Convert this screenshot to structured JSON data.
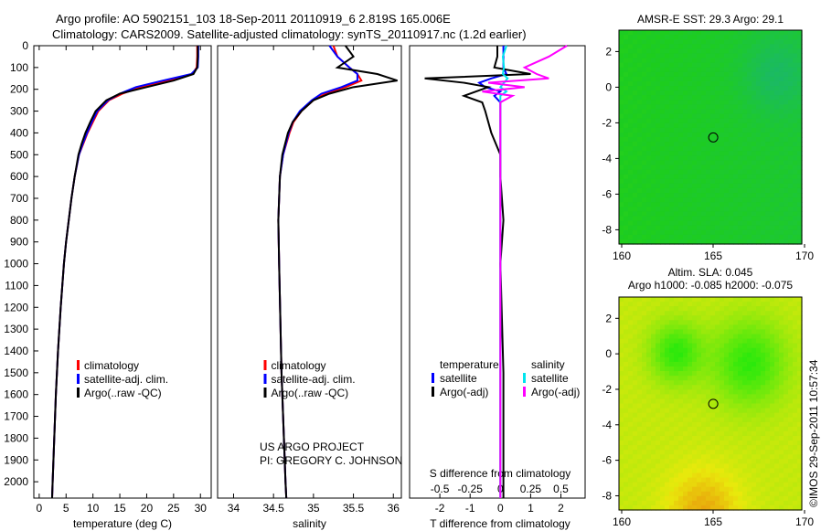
{
  "title": {
    "line1": "Argo profile: AO 5902151_103 18-Sep-2011 20110919_6 2.819S 165.006E",
    "line2": "Climatology: CARS2009. Satellite-adjusted climatology: synTS_20110917.nc (1.2d earlier)"
  },
  "credit": {
    "project": "US ARGO PROJECT",
    "pi": "PI: GREGORY C. JOHNSON",
    "stamp": "©IMOS 29-Sep-2011 10:57:34"
  },
  "colors": {
    "climatology": "#ff0000",
    "satellite": "#0000ff",
    "argo": "#000000",
    "sal_satellite": "#00e5ee",
    "sal_argo": "#ff00ff"
  },
  "chart_data": [
    {
      "type": "line",
      "name": "temperature-profile",
      "xlabel": "temperature (deg C)",
      "ylabel": "",
      "xlim": [
        -1,
        32
      ],
      "ylim": [
        2075,
        0
      ],
      "xticks": [
        0,
        5,
        10,
        15,
        20,
        25,
        30
      ],
      "yticks": [
        0,
        100,
        200,
        300,
        400,
        500,
        600,
        700,
        800,
        900,
        1000,
        1100,
        1200,
        1300,
        1400,
        1500,
        1600,
        1700,
        1800,
        1900,
        2000
      ],
      "depth": [
        0,
        50,
        100,
        130,
        160,
        190,
        220,
        250,
        300,
        350,
        400,
        450,
        500,
        600,
        700,
        800,
        900,
        1000,
        1200,
        1400,
        1600,
        1800,
        2000,
        2075
      ],
      "series": [
        {
          "name": "climatology",
          "values": [
            29.4,
            29.4,
            29.3,
            28.5,
            24,
            19,
            15.5,
            13,
            11,
            10,
            9,
            8.2,
            7.4,
            6.6,
            6,
            5.5,
            5,
            4.6,
            4,
            3.5,
            3.1,
            2.8,
            2.5,
            2.4
          ]
        },
        {
          "name": "satellite-adj. clim.",
          "values": [
            29.6,
            29.6,
            29.5,
            28.3,
            23,
            18,
            15,
            12.8,
            10.8,
            9.8,
            8.9,
            8.1,
            7.4,
            6.6,
            6,
            5.5,
            5,
            4.6,
            4,
            3.5,
            3.1,
            2.8,
            2.5,
            2.4
          ]
        },
        {
          "name": "Argo(..raw -QC)",
          "values": [
            29.5,
            29.5,
            29.4,
            28.7,
            25,
            20,
            15,
            12.5,
            10.5,
            9.5,
            8.6,
            7.9,
            7.3,
            6.6,
            6,
            5.5,
            5,
            4.6,
            4,
            3.5,
            3.1,
            2.8,
            2.5,
            2.4
          ]
        }
      ],
      "legend": [
        "climatology",
        "satellite-adj. clim.",
        "Argo(..raw -QC)"
      ],
      "legend_placement": "bottom-center"
    },
    {
      "type": "line",
      "name": "salinity-profile",
      "xlabel": "salinity",
      "xlim": [
        33.8,
        36.1
      ],
      "ylim": [
        2075,
        0
      ],
      "xticks": [
        34,
        34.5,
        35,
        35.5,
        36
      ],
      "depth": [
        0,
        50,
        100,
        130,
        160,
        190,
        220,
        250,
        300,
        350,
        400,
        500,
        600,
        800,
        1000,
        1500,
        2000,
        2075
      ],
      "series": [
        {
          "name": "climatology",
          "values": [
            35.25,
            35.3,
            35.45,
            35.55,
            35.6,
            35.4,
            35.15,
            35.0,
            34.85,
            34.75,
            34.7,
            34.62,
            34.58,
            34.56,
            34.57,
            34.6,
            34.65,
            34.66
          ]
        },
        {
          "name": "satellite-adj. clim.",
          "values": [
            35.2,
            35.3,
            35.45,
            35.55,
            35.55,
            35.35,
            35.1,
            34.98,
            34.83,
            34.74,
            34.69,
            34.62,
            34.58,
            34.56,
            34.57,
            34.6,
            34.65,
            34.66
          ]
        },
        {
          "name": "Argo(..raw -QC)",
          "values": [
            35.4,
            35.5,
            35.3,
            35.8,
            36.05,
            35.5,
            35.2,
            35.0,
            34.85,
            34.74,
            34.68,
            34.61,
            34.58,
            34.56,
            34.57,
            34.6,
            34.65,
            34.66
          ]
        }
      ],
      "legend": [
        "climatology",
        "satellite-adj. clim.",
        "Argo(..raw -QC)"
      ],
      "legend_placement": "bottom-center"
    },
    {
      "type": "line",
      "name": "difference-profile",
      "xlabel": "T difference from climatology",
      "xlabel2": "S difference from climatology",
      "xlim": [
        -3,
        2.8
      ],
      "ylim": [
        2075,
        0
      ],
      "xticks": [
        -2,
        -1,
        0,
        1,
        2
      ],
      "xticks2": [
        -0.5,
        -0.25,
        0,
        0.25,
        0.5
      ],
      "depth": [
        0,
        50,
        100,
        130,
        150,
        170,
        190,
        210,
        230,
        260,
        300,
        400,
        500,
        600,
        800,
        1000,
        1500,
        2000,
        2075
      ],
      "series": [
        {
          "name": "temperature satellite",
          "values": [
            0.1,
            0.1,
            0.1,
            0.2,
            -0.3,
            -0.7,
            -0.5,
            0,
            -0.2,
            0,
            0,
            0,
            0,
            0,
            0,
            0,
            0,
            0,
            0
          ]
        },
        {
          "name": "temperature Argo(-adj)",
          "values": [
            -0.1,
            -0.1,
            -0.2,
            1.0,
            -2.5,
            -1.2,
            -0.4,
            -0.8,
            -1.2,
            -0.6,
            -0.5,
            -0.3,
            0,
            0,
            0.1,
            0,
            0.1,
            0.1,
            0.1
          ]
        },
        {
          "name": "salinity satellite",
          "values": [
            0.05,
            0.02,
            0.03,
            0.02,
            0.06,
            0.03,
            0.0,
            0.05,
            0.0,
            0,
            0,
            0,
            0,
            0,
            0,
            0,
            0,
            0,
            0
          ]
        },
        {
          "name": "salinity Argo(-adj)",
          "values": [
            0.55,
            0.4,
            0.2,
            0.3,
            0.4,
            -0.1,
            0.2,
            -0.15,
            0.1,
            0,
            0,
            0,
            0,
            0,
            0,
            0,
            0,
            0,
            0
          ]
        }
      ],
      "legend_headers": [
        "temperature",
        "salinity"
      ],
      "legend": [
        "satellite",
        "Argo(-adj)",
        "satellite",
        "Argo(-adj)"
      ],
      "legend_placement": "bottom-center"
    },
    {
      "type": "heatmap",
      "name": "sst-map",
      "title": "AMSR-E SST: 29.3  Argo: 29.1",
      "xlim": [
        160,
        170
      ],
      "ylim": [
        -8.8,
        3.2
      ],
      "xticks": [
        160,
        165,
        170
      ],
      "yticks": [
        2,
        0,
        -2,
        -4,
        -6,
        -8
      ],
      "marker": {
        "lon": 165.006,
        "lat": -2.819
      }
    },
    {
      "type": "heatmap",
      "name": "sla-map",
      "title": "Altim. SLA: 0.045",
      "subtitle": "Argo h1000: -0.085 h2000: -0.075",
      "xlim": [
        160,
        170
      ],
      "ylim": [
        -8.8,
        3.2
      ],
      "xticks": [
        160,
        165,
        170
      ],
      "yticks": [
        2,
        0,
        -2,
        -4,
        -6,
        -8
      ],
      "marker": {
        "lon": 165.006,
        "lat": -2.819
      }
    }
  ]
}
